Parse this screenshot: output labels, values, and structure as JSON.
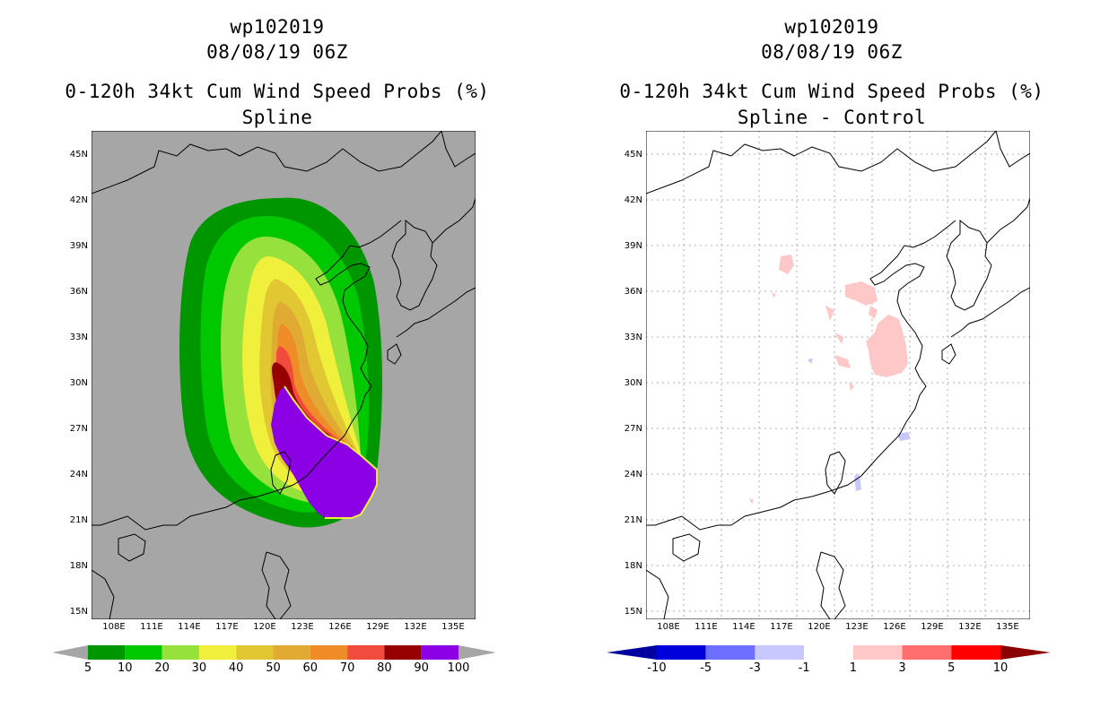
{
  "left": {
    "storm_id": "wp102019",
    "datetime": "08/08/19 06Z",
    "title": "0-120h 34kt Cum Wind Speed Probs (%)",
    "subtitle": "Spline",
    "background": "#a6a6a6",
    "colorbar": {
      "labels": [
        "5",
        "10",
        "20",
        "30",
        "40",
        "50",
        "60",
        "70",
        "80",
        "90",
        "100"
      ],
      "colors": [
        "#009600",
        "#00c800",
        "#96e13c",
        "#f0f03c",
        "#e1c832",
        "#e1aa32",
        "#f08c28",
        "#f04b3c",
        "#960000",
        "#8c00e6"
      ],
      "end_arrow_color": "#a6a6a6"
    }
  },
  "right": {
    "storm_id": "wp102019",
    "datetime": "08/08/19 06Z",
    "title": "0-120h 34kt Cum Wind Speed Probs (%)",
    "subtitle": "Spline - Control",
    "background": "#ffffff",
    "colorbar": {
      "labels": [
        "-10",
        "-5",
        "-3",
        "-1",
        "1",
        "3",
        "5",
        "10"
      ],
      "colors": [
        "#0000dc",
        "#6e6eff",
        "#c8c8ff",
        "#ffffff",
        "#ffc8c8",
        "#ff6e6e",
        "#ff0000"
      ],
      "left_arrow_color": "#0000a0",
      "right_arrow_color": "#8c0000"
    }
  },
  "axes": {
    "lat_labels": [
      "45N",
      "42N",
      "39N",
      "36N",
      "33N",
      "30N",
      "27N",
      "24N",
      "21N",
      "18N",
      "15N"
    ],
    "lon_labels": [
      "108E",
      "111E",
      "114E",
      "117E",
      "120E",
      "123E",
      "126E",
      "129E",
      "132E",
      "135E"
    ]
  }
}
